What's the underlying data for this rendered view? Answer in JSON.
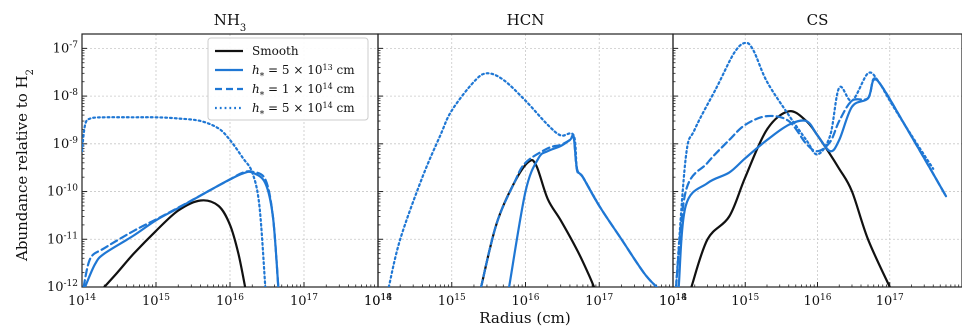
{
  "figure": {
    "ylabel": "Abundance relative to H",
    "ylabel_sub": "2",
    "xlabel": "Radius (cm)"
  },
  "legend": {
    "entries": [
      {
        "text": "Smooth",
        "color": "#111111",
        "dash": "solid"
      },
      {
        "text": "h* = 5 × 10^13 cm",
        "color": "#1f77d4",
        "dash": "solid"
      },
      {
        "text": "h* = 1 × 10^14 cm",
        "color": "#1f77d4",
        "dash": "dashed"
      },
      {
        "text": "h* = 5 × 10^14 cm",
        "color": "#1f77d4",
        "dash": "dotted"
      }
    ]
  },
  "chart_data": [
    {
      "type": "line",
      "title": "NH3",
      "xlabel": "",
      "ylabel": "Abundance relative to H2",
      "xscale": "log",
      "yscale": "log",
      "xlim": [
        100000000000000.0,
        1e+18
      ],
      "ylim": [
        1e-12,
        2e-07
      ],
      "grid": true,
      "legend": "top-right",
      "xticks": [
        "10^14",
        "10^15",
        "10^16",
        "10^17",
        "10^18"
      ],
      "yticks": [
        "10^-12",
        "10^-11",
        "10^-10",
        "10^-9",
        "10^-8",
        "10^-7"
      ],
      "series": [
        {
          "name": "Smooth",
          "color": "#111111",
          "dash": "solid",
          "points": [
            [
              200000000000000.0,
              1e-12
            ],
            [
              300000000000000.0,
              2e-12
            ],
            [
              500000000000000.0,
              5e-12
            ],
            [
              1000000000000000.0,
              1.5e-11
            ],
            [
              2000000000000000.0,
              4e-11
            ],
            [
              4000000000000000.0,
              6.5e-11
            ],
            [
              7000000000000000.0,
              5e-11
            ],
            [
              1e+16,
              2e-11
            ],
            [
              1.3e+16,
              5e-12
            ],
            [
              1.6e+16,
              1e-12
            ]
          ]
        },
        {
          "name": "h* = 5 × 10^13 cm",
          "color": "#1f77d4",
          "dash": "solid",
          "points": [
            [
              110000000000000.0,
              1e-12
            ],
            [
              150000000000000.0,
              3e-12
            ],
            [
              200000000000000.0,
              5e-12
            ],
            [
              500000000000000.0,
              1.2e-11
            ],
            [
              1000000000000000.0,
              2.5e-11
            ],
            [
              2000000000000000.0,
              4.5e-11
            ],
            [
              5000000000000000.0,
              1e-10
            ],
            [
              1e+16,
              1.8e-10
            ],
            [
              1.5e+16,
              2.4e-10
            ],
            [
              2e+16,
              2.5e-10
            ],
            [
              3e+16,
              1.5e-10
            ],
            [
              3.8e+16,
              3e-11
            ],
            [
              4.5e+16,
              1e-12
            ]
          ]
        },
        {
          "name": "h* = 1 × 10^14 cm",
          "color": "#1f77d4",
          "dash": "dashed",
          "points": [
            [
              105000000000000.0,
              1e-12
            ],
            [
              130000000000000.0,
              4e-12
            ],
            [
              200000000000000.0,
              6.5e-12
            ],
            [
              500000000000000.0,
              1.5e-11
            ],
            [
              1000000000000000.0,
              2.6e-11
            ],
            [
              2000000000000000.0,
              4.6e-11
            ],
            [
              5000000000000000.0,
              1e-10
            ],
            [
              1e+16,
              1.8e-10
            ],
            [
              1.5e+16,
              2.5e-10
            ],
            [
              2e+16,
              2.6e-10
            ],
            [
              3e+16,
              1.8e-10
            ],
            [
              3.8e+16,
              3e-11
            ],
            [
              4.5e+16,
              1e-12
            ]
          ]
        },
        {
          "name": "h* = 5 × 10^14 cm",
          "color": "#1f77d4",
          "dash": "dotted",
          "points": [
            [
              100000000000000.0,
              7e-10
            ],
            [
              110000000000000.0,
              2.5e-09
            ],
            [
              130000000000000.0,
              3.4e-09
            ],
            [
              200000000000000.0,
              3.6e-09
            ],
            [
              500000000000000.0,
              3.6e-09
            ],
            [
              1000000000000000.0,
              3.6e-09
            ],
            [
              2000000000000000.0,
              3.4e-09
            ],
            [
              4000000000000000.0,
              3e-09
            ],
            [
              7000000000000000.0,
              2.1e-09
            ],
            [
              1e+16,
              1.2e-09
            ],
            [
              1.5e+16,
              5e-10
            ],
            [
              2e+16,
              2.5e-10
            ],
            [
              2.5e+16,
              5e-11
            ],
            [
              3e+16,
              1e-12
            ]
          ]
        }
      ]
    },
    {
      "type": "line",
      "title": "HCN",
      "xscale": "log",
      "yscale": "log",
      "xlim": [
        100000000000000.0,
        1e+18
      ],
      "ylim": [
        1e-12,
        2e-07
      ],
      "grid": true,
      "xticks": [
        "10^14",
        "10^15",
        "10^16",
        "10^17",
        "10^18"
      ],
      "series": [
        {
          "name": "Smooth",
          "color": "#111111",
          "dash": "solid",
          "points": [
            [
              2500000000000000.0,
              1e-12
            ],
            [
              4000000000000000.0,
              2e-11
            ],
            [
              7000000000000000.0,
              1.5e-10
            ],
            [
              1.1e+16,
              4.2e-10
            ],
            [
              1.4e+16,
              3.5e-10
            ],
            [
              2e+16,
              7e-11
            ],
            [
              3e+16,
              2.5e-11
            ],
            [
              5e+16,
              6e-12
            ],
            [
              7e+16,
              2e-12
            ],
            [
              8.5e+16,
              1e-12
            ]
          ]
        },
        {
          "name": "h* = 5 × 10^13 cm",
          "color": "#1f77d4",
          "dash": "solid",
          "points": [
            [
              6000000000000000.0,
              1e-12
            ],
            [
              1e+16,
              1e-10
            ],
            [
              1.5e+16,
              5e-10
            ],
            [
              2e+16,
              7e-10
            ],
            [
              3e+16,
              9e-10
            ],
            [
              4e+16,
              1.2e-09
            ],
            [
              4.5e+16,
              1.35e-09
            ],
            [
              5e+16,
              3e-10
            ],
            [
              6e+16,
              2e-10
            ],
            [
              1e+17,
              5e-11
            ],
            [
              2e+17,
              1e-11
            ],
            [
              4e+17,
              2e-12
            ],
            [
              6e+17,
              1e-12
            ]
          ]
        },
        {
          "name": "h* = 1 × 10^14 cm",
          "color": "#1f77d4",
          "dash": "dashed",
          "points": [
            [
              2500000000000000.0,
              1e-12
            ],
            [
              4000000000000000.0,
              2e-11
            ],
            [
              7000000000000000.0,
              1.5e-10
            ],
            [
              1e+16,
              4e-10
            ],
            [
              2e+16,
              8e-10
            ],
            [
              3e+16,
              9.5e-10
            ],
            [
              4e+16,
              1.2e-09
            ],
            [
              4.5e+16,
              1.4e-09
            ],
            [
              5e+16,
              2.8e-10
            ],
            [
              6e+16,
              2e-10
            ],
            [
              1e+17,
              5e-11
            ],
            [
              2e+17,
              1e-11
            ],
            [
              4e+17,
              2e-12
            ],
            [
              6e+17,
              1e-12
            ]
          ]
        },
        {
          "name": "h* = 5 × 10^14 cm",
          "color": "#1f77d4",
          "dash": "dotted",
          "points": [
            [
              140000000000000.0,
              1e-12
            ],
            [
              200000000000000.0,
              1e-11
            ],
            [
              400000000000000.0,
              2e-10
            ],
            [
              700000000000000.0,
              1.5e-09
            ],
            [
              1000000000000000.0,
              5e-09
            ],
            [
              2000000000000000.0,
              2e-08
            ],
            [
              3000000000000000.0,
              3e-08
            ],
            [
              5000000000000000.0,
              2.2e-08
            ],
            [
              1e+16,
              8e-09
            ],
            [
              2e+16,
              2.5e-09
            ],
            [
              3e+16,
              1.5e-09
            ],
            [
              4.5e+16,
              1.5e-09
            ],
            [
              5e+16,
              3e-10
            ],
            [
              6e+16,
              2e-10
            ],
            [
              1e+17,
              5e-11
            ]
          ]
        }
      ]
    },
    {
      "type": "line",
      "title": "CS",
      "xscale": "log",
      "yscale": "log",
      "xlim": [
        100000000000000.0,
        1e+18
      ],
      "ylim": [
        1e-12,
        2e-07
      ],
      "grid": true,
      "xticks": [
        "10^14",
        "10^15",
        "10^16",
        "10^17"
      ],
      "series": [
        {
          "name": "Smooth",
          "color": "#111111",
          "dash": "solid",
          "points": [
            [
              180000000000000.0,
              1e-12
            ],
            [
              300000000000000.0,
              1e-11
            ],
            [
              600000000000000.0,
              3e-11
            ],
            [
              1000000000000000.0,
              2e-10
            ],
            [
              2000000000000000.0,
              2e-09
            ],
            [
              4000000000000000.0,
              4.8e-09
            ],
            [
              7000000000000000.0,
              3e-09
            ],
            [
              1e+16,
              1.5e-09
            ],
            [
              2e+16,
              3e-10
            ],
            [
              3e+16,
              1e-10
            ],
            [
              5e+16,
              1e-11
            ],
            [
              1e+17,
              1e-12
            ]
          ]
        },
        {
          "name": "h* = 5 × 10^13 cm",
          "color": "#1f77d4",
          "dash": "solid",
          "points": [
            [
              120000000000000.0,
              1e-12
            ],
            [
              150000000000000.0,
              5e-11
            ],
            [
              300000000000000.0,
              1.5e-10
            ],
            [
              600000000000000.0,
              2.5e-10
            ],
            [
              1000000000000000.0,
              5e-10
            ],
            [
              2000000000000000.0,
              1.2e-09
            ],
            [
              4000000000000000.0,
              2.5e-09
            ],
            [
              7000000000000000.0,
              3e-09
            ],
            [
              1e+16,
              1.5e-09
            ],
            [
              1.5e+16,
              7e-10
            ],
            [
              2e+16,
              1.2e-09
            ],
            [
              3e+16,
              6e-09
            ],
            [
              5e+16,
              9e-09
            ],
            [
              6e+16,
              2.2e-08
            ],
            [
              8e+16,
              1.5e-08
            ],
            [
              1.5e+17,
              3e-09
            ],
            [
              3e+17,
              5e-10
            ],
            [
              6e+17,
              8e-11
            ]
          ]
        },
        {
          "name": "h* = 1 × 10^14 cm",
          "color": "#1f77d4",
          "dash": "dashed",
          "points": [
            [
              110000000000000.0,
              1e-12
            ],
            [
              150000000000000.0,
              1e-10
            ],
            [
              300000000000000.0,
              4e-10
            ],
            [
              600000000000000.0,
              1.2e-09
            ],
            [
              1000000000000000.0,
              2.5e-09
            ],
            [
              2000000000000000.0,
              3.8e-09
            ],
            [
              4000000000000000.0,
              3e-09
            ],
            [
              7000000000000000.0,
              1e-09
            ],
            [
              1e+16,
              7e-10
            ],
            [
              1.5e+16,
              1.1e-09
            ],
            [
              2e+16,
              3e-09
            ],
            [
              3e+16,
              8e-09
            ],
            [
              5e+16,
              9e-09
            ],
            [
              6e+16,
              2.3e-08
            ],
            [
              8e+16,
              1.5e-08
            ],
            [
              1.5e+17,
              3e-09
            ],
            [
              3e+17,
              5e-10
            ],
            [
              6e+17,
              8e-11
            ]
          ]
        },
        {
          "name": "h* = 5 × 10^14 cm",
          "color": "#1f77d4",
          "dash": "dotted",
          "points": [
            [
              110000000000000.0,
              1e-12
            ],
            [
              150000000000000.0,
              5e-10
            ],
            [
              200000000000000.0,
              2e-09
            ],
            [
              400000000000000.0,
              1.5e-08
            ],
            [
              700000000000000.0,
              8e-08
            ],
            [
              1000000000000000.0,
              1.3e-07
            ],
            [
              1300000000000000.0,
              9e-08
            ],
            [
              2000000000000000.0,
              2e-08
            ],
            [
              4000000000000000.0,
              4e-09
            ],
            [
              7000000000000000.0,
              1.2e-09
            ],
            [
              1e+16,
              6e-10
            ],
            [
              1.5e+16,
              1.5e-09
            ],
            [
              2e+16,
              1.5e-08
            ],
            [
              3e+16,
              8e-09
            ],
            [
              5e+16,
              3e-08
            ],
            [
              7e+16,
              2e-08
            ],
            [
              1e+17,
              8e-09
            ],
            [
              2e+17,
              1.5e-09
            ],
            [
              4e+17,
              3e-10
            ]
          ]
        }
      ]
    }
  ]
}
